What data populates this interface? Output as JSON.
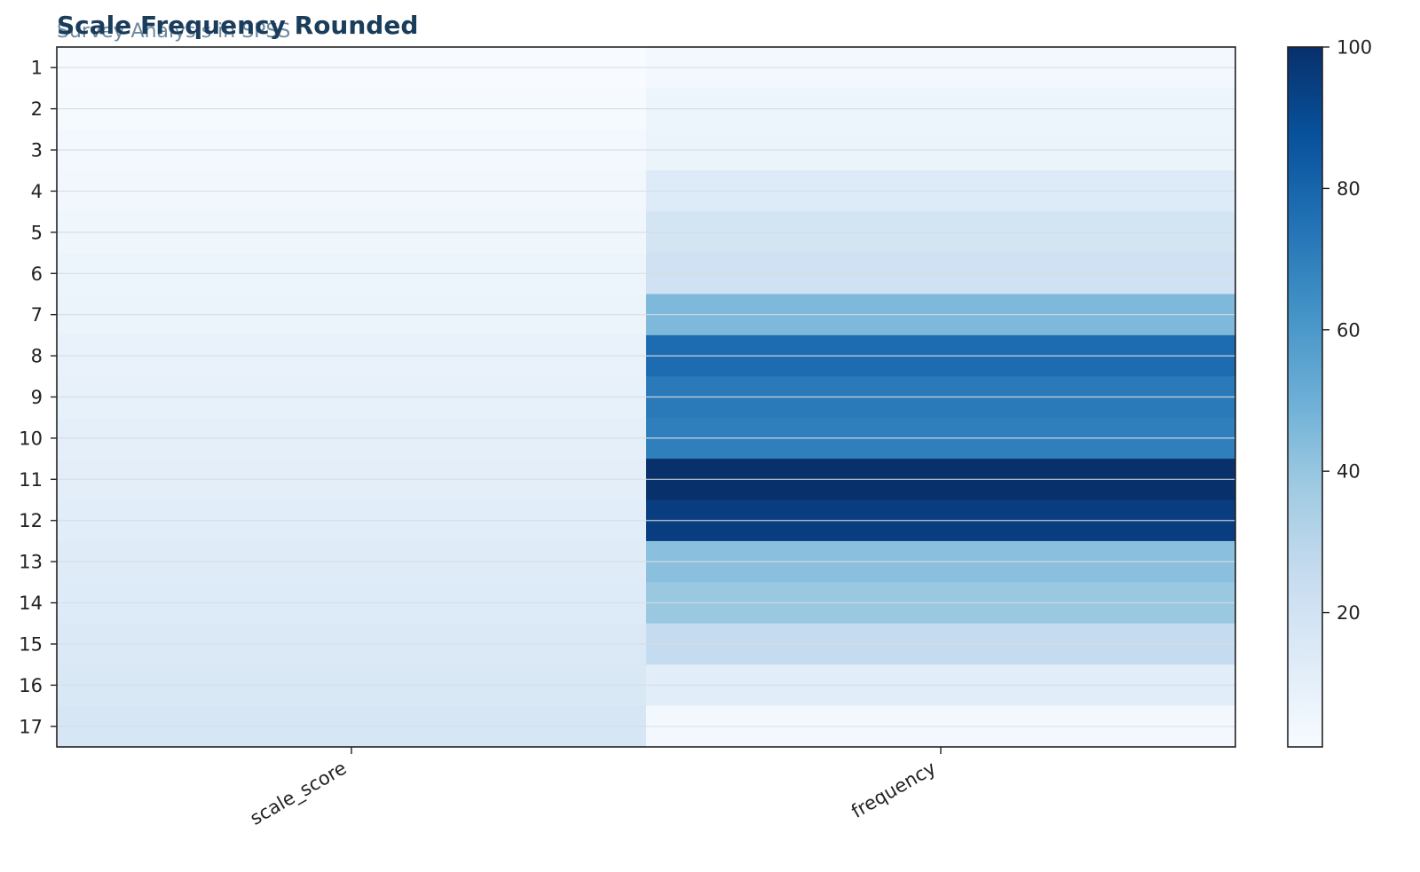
{
  "chart_data": {
    "type": "heatmap",
    "title": "Scale Frequency Rounded",
    "subtitle": "Survey Analysis in SPSS",
    "columns": [
      "scale_score",
      "frequency"
    ],
    "rows": [
      "1",
      "2",
      "3",
      "4",
      "5",
      "6",
      "7",
      "8",
      "9",
      "10",
      "11",
      "12",
      "13",
      "14",
      "15",
      "16",
      "17"
    ],
    "values": [
      [
        1,
        3
      ],
      [
        2,
        6
      ],
      [
        3,
        7
      ],
      [
        4,
        14
      ],
      [
        5,
        19
      ],
      [
        6,
        21
      ],
      [
        7,
        46
      ],
      [
        8,
        77
      ],
      [
        9,
        72
      ],
      [
        10,
        70
      ],
      [
        11,
        100
      ],
      [
        12,
        95
      ],
      [
        13,
        43
      ],
      [
        14,
        39
      ],
      [
        15,
        26
      ],
      [
        16,
        12
      ],
      [
        17,
        3
      ]
    ],
    "colorbar": {
      "min": 1,
      "max": 100,
      "ticks": [
        20,
        40,
        60,
        80,
        100
      ],
      "colormap": "Blues"
    },
    "grid": true,
    "legend": "right"
  }
}
